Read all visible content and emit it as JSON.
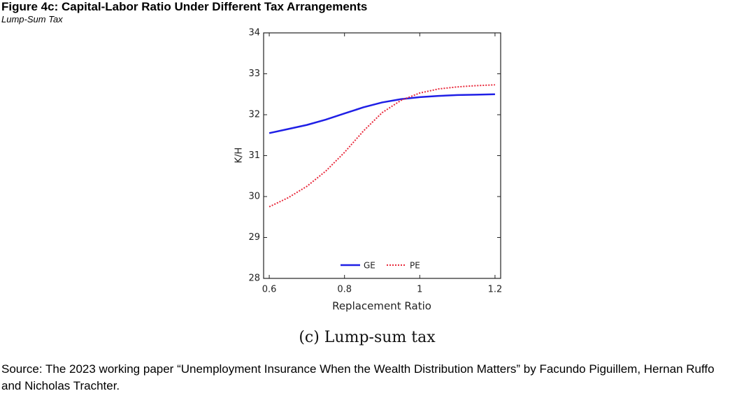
{
  "chart_data": {
    "type": "line",
    "title": "Figure 4c: Capital-Labor Ratio Under Different Tax Arrangements",
    "subtitle": "Lump-Sum Tax",
    "x_label": "Replacement Ratio",
    "y_label": "K/H",
    "caption": "(c) Lump-sum tax",
    "source": "Source: The 2023 working paper “Unemployment Insurance When the Wealth Distribution Matters” by Facundo Piguillem, Hernan Ruffo and Nicholas Trachter.",
    "x": [
      0.6,
      0.65,
      0.7,
      0.75,
      0.8,
      0.85,
      0.9,
      0.95,
      1.0,
      1.05,
      1.1,
      1.15,
      1.2
    ],
    "series": [
      {
        "name": "GE",
        "color": "#1f1fe6",
        "dash": "solid",
        "values": [
          31.55,
          31.65,
          31.75,
          31.88,
          32.03,
          32.18,
          32.3,
          32.38,
          32.43,
          32.46,
          32.48,
          32.49,
          32.5
        ]
      },
      {
        "name": "PE",
        "color": "#e8283a",
        "dash": "dotted",
        "values": [
          29.75,
          29.97,
          30.25,
          30.62,
          31.08,
          31.6,
          32.05,
          32.35,
          32.53,
          32.63,
          32.68,
          32.71,
          32.73
        ]
      }
    ],
    "xlim": [
      0.585,
      1.215
    ],
    "xticks": [
      0.6,
      0.8,
      1,
      1.2
    ],
    "ylim": [
      28,
      34
    ],
    "yticks": [
      28,
      29,
      30,
      31,
      32,
      33,
      34
    ],
    "grid": false,
    "legend": "bottom"
  }
}
